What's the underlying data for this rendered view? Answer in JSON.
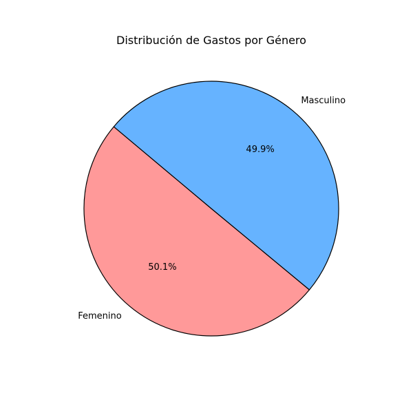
{
  "chart_data": {
    "type": "pie",
    "title": "Distribución de Gastos por Género",
    "start_angle_deg": 140,
    "direction": "counterclockwise",
    "slices": [
      {
        "name": "Femenino",
        "value": 50.1,
        "pct_label": "50.1%",
        "color": "#ff9999"
      },
      {
        "name": "Masculino",
        "value": 49.9,
        "pct_label": "49.9%",
        "color": "#66b3ff"
      }
    ],
    "edge_color": "#000000",
    "legend": "none"
  }
}
